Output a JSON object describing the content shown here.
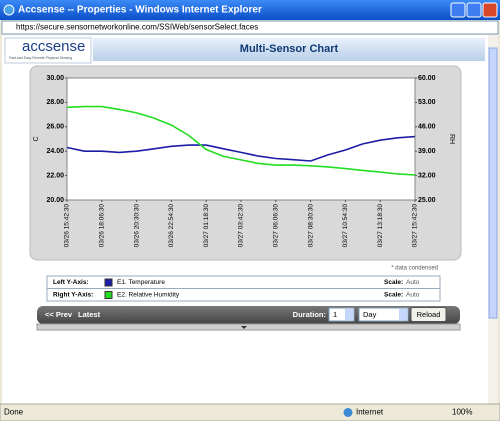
{
  "window": {
    "title": "Accsense -- Properties - Windows Internet Explorer",
    "address": "https://secure.sensornetworkonline.com/SSIWeb/sensorSelect.faces"
  },
  "header": {
    "logo": "accsense",
    "tagline": "Fast and Easy Remote Physical Sensing",
    "title": "Multi-Sensor Chart"
  },
  "chart_data": {
    "type": "line",
    "y_label": "C",
    "y2_label": "RH",
    "categories": [
      "03/26 15:42:30",
      null,
      "03/26 18:06:30",
      null,
      "03/26 20:30:30",
      null,
      "03/26 22:54:30",
      null,
      "03/27 01:18:30",
      null,
      "03/27 03:42:30",
      null,
      "03/27 06:06:30",
      null,
      "03/27 08:30:30",
      null,
      "03/27 10:54:30",
      null,
      "03/27 13:18:30",
      null,
      "03/27 15:42:30"
    ],
    "ylim": [
      20,
      30
    ],
    "yticks": [
      {
        "value": 20,
        "label": "20.00"
      },
      {
        "value": 22,
        "label": "22.00"
      },
      {
        "value": 24,
        "label": "24.00"
      },
      {
        "value": 26,
        "label": "26.00"
      },
      {
        "value": 28,
        "label": "28.00"
      },
      {
        "value": 30,
        "label": "30.00"
      }
    ],
    "y2lim": [
      25,
      60
    ],
    "y2ticks": [
      {
        "value": 25,
        "label": "25.00"
      },
      {
        "value": 32,
        "label": "32.00"
      },
      {
        "value": 39,
        "label": "39.00"
      },
      {
        "value": 46,
        "label": "46.00"
      },
      {
        "value": 53,
        "label": "53.00"
      },
      {
        "value": 60,
        "label": "60.00"
      }
    ],
    "series": [
      {
        "name": "E1. Temperature",
        "color": "#1c1ca6",
        "axis": "y",
        "values": [
          24.3,
          24.0,
          24.0,
          23.9,
          24.0,
          24.2,
          24.4,
          24.5,
          24.5,
          24.2,
          23.9,
          23.6,
          23.4,
          23.3,
          23.2,
          23.7,
          24.1,
          24.6,
          24.9,
          25.1,
          25.2
        ]
      },
      {
        "name": "E2. Relative Humidity",
        "color": "#22dd22",
        "axis": "y2",
        "values": [
          51.6,
          51.8,
          51.8,
          51.0,
          50.0,
          48.5,
          46.5,
          43.5,
          39.5,
          37.5,
          36.5,
          35.5,
          35.0,
          35.0,
          34.8,
          34.5,
          34.0,
          33.5,
          33.0,
          32.5,
          32.2
        ]
      }
    ],
    "note": "* data condensed",
    "legend_rows": [
      {
        "axis": "Left Y-Axis:",
        "scale_label": "Scale:",
        "scale": "Auto"
      },
      {
        "axis": "Right Y-Axis:",
        "scale_label": "Scale:",
        "scale": "Auto"
      }
    ]
  },
  "nav": {
    "prev": "<< Prev",
    "latest": "Latest",
    "duration_label": "Duration:",
    "duration": "1",
    "unit": "Day",
    "reload": "Reload"
  },
  "status": {
    "text": "Done",
    "zone": "Internet",
    "zoom": "100%"
  }
}
